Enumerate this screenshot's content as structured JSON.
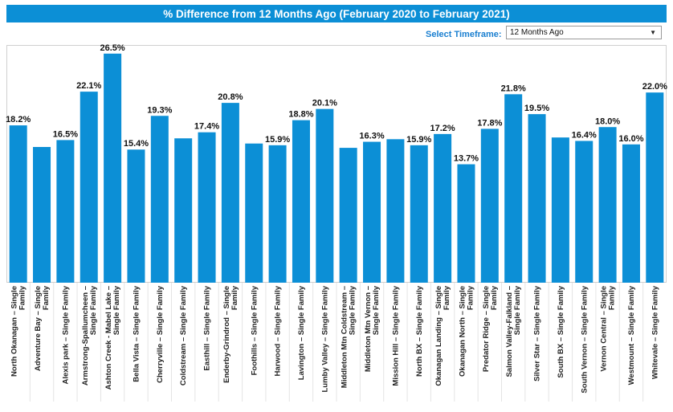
{
  "title": "% Difference from 12 Months Ago (February 2020 to February 2021)",
  "timeframe": {
    "label": "Select Timeframe:",
    "selected": "12 Months Ago"
  },
  "colors": {
    "bar": "#0c8fd6",
    "title_bg": "#0c8fd6",
    "label_accent": "#1a7fd0"
  },
  "chart_data": {
    "type": "bar",
    "title": "% Difference from 12 Months Ago (February 2020 to February 2021)",
    "xlabel": "",
    "ylabel": "",
    "ylim": [
      0,
      27.5
    ],
    "grid": false,
    "legend": "none",
    "categories": [
      [
        "North Okanagan – Single",
        "Family"
      ],
      [
        "Adventure Bay – Single",
        "Family"
      ],
      [
        "Alexis park – Single Family"
      ],
      [
        "Armstrong-Spallumcheen –",
        "Single Family"
      ],
      [
        "Ashton Creek - Mabel Lake –",
        "Single Family"
      ],
      [
        "Bella Vista – Single Family"
      ],
      [
        "Cherryville – Single Family"
      ],
      [
        "Coldstream – Single Family"
      ],
      [
        "Easthill – Single Family"
      ],
      [
        "Enderby-Grindrod – Single",
        "Family"
      ],
      [
        "Foothills – Single Family"
      ],
      [
        "Harwood – Single Family"
      ],
      [
        "Lavington – Single Family"
      ],
      [
        "Lumby Valley – Single Family"
      ],
      [
        "Middleton Mtn Coldstream –",
        "Single Family"
      ],
      [
        "Middleton Mtn Vernon –",
        "Single Family"
      ],
      [
        "Mission Hill – Single Family"
      ],
      [
        "North BX – Single Family"
      ],
      [
        "Okanagan Landing – Single",
        "Family"
      ],
      [
        "Okanagan North – Single",
        "Family"
      ],
      [
        "Predator Ridge – Single",
        "Family"
      ],
      [
        "Salmon Valley-Falkland –",
        "Single Family"
      ],
      [
        "Silver Star – Single Family"
      ],
      [
        "South BX – Single Family"
      ],
      [
        "South Vernon – Single Family"
      ],
      [
        "Vernon Central – Single",
        "Family"
      ],
      [
        "Westmount – Single Family"
      ],
      [
        "Whitevale – Single Family"
      ]
    ],
    "values": [
      18.2,
      15.7,
      16.5,
      22.1,
      26.5,
      15.4,
      19.3,
      16.7,
      17.4,
      20.8,
      16.1,
      15.9,
      18.8,
      20.1,
      15.6,
      16.3,
      16.6,
      15.9,
      17.2,
      13.7,
      17.8,
      21.8,
      19.5,
      16.8,
      16.4,
      18.0,
      16.0,
      22.0
    ],
    "data_labels": [
      "18.2%",
      "",
      "16.5%",
      "22.1%",
      "26.5%",
      "15.4%",
      "19.3%",
      "",
      "17.4%",
      "20.8%",
      "",
      "15.9%",
      "18.8%",
      "20.1%",
      "",
      "16.3%",
      "",
      "15.9%",
      "17.2%",
      "13.7%",
      "17.8%",
      "21.8%",
      "19.5%",
      "",
      "16.4%",
      "18.0%",
      "16.0%",
      "22.0%"
    ]
  }
}
